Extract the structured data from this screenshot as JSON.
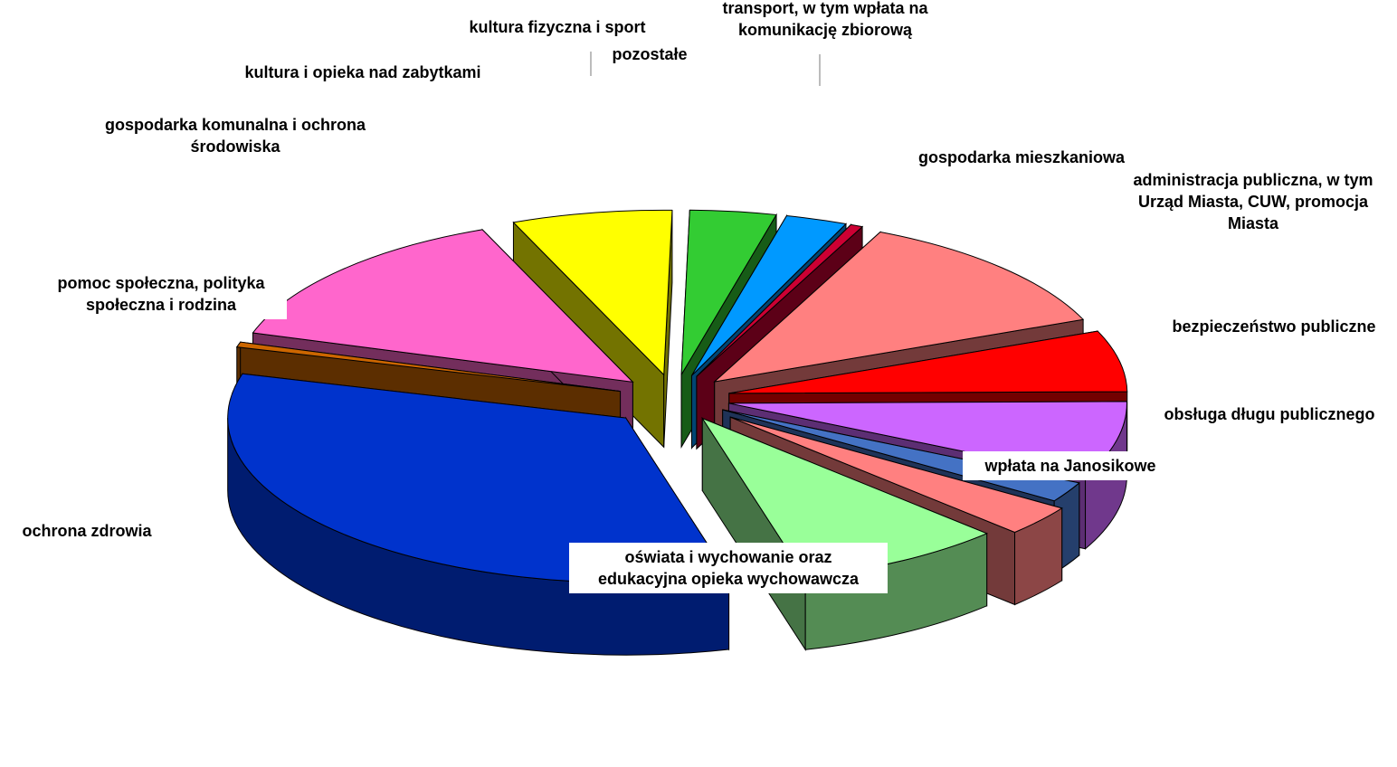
{
  "chart_data": {
    "type": "pie",
    "title": "",
    "slices": [
      {
        "label": "oświata i wychowanie oraz edukacyjna opieka wychowawcza",
        "label_lines": [
          "oświata i wychowanie oraz",
          "edukacyjna opieka wychowawcza"
        ],
        "value": 33.5,
        "color": "#0033CC"
      },
      {
        "label": "ochrona zdrowia",
        "label_lines": [
          "ochrona zdrowia"
        ],
        "value": 0.5,
        "color": "#CC6600"
      },
      {
        "label": "pomoc społeczna, polityka społeczna i rodzina",
        "label_lines": [
          "pomoc społeczna, polityka",
          "społeczna i rodzina"
        ],
        "value": 14.0,
        "color": "#FF66CC"
      },
      {
        "label": "gospodarka komunalna i ochrona środowiska",
        "label_lines": [
          "gospodarka komunalna i ochrona",
          "środowiska"
        ],
        "value": 6.5,
        "color": "#FFFF00"
      },
      {
        "label": "kultura i opieka nad zabytkami",
        "label_lines": [
          "kultura i opieka nad zabytkami"
        ],
        "value": 3.5,
        "color": "#33CC33"
      },
      {
        "label": "kultura fizyczna i sport",
        "label_lines": [
          "kultura fizyczna i sport"
        ],
        "value": 2.5,
        "color": "#0099FF"
      },
      {
        "label": "pozostałe",
        "label_lines": [
          "pozostałe"
        ],
        "value": 0.5,
        "color": "#CC0033"
      },
      {
        "label": "transport, w tym wpłata na komunikację zbiorową",
        "label_lines": [
          "transport, w tym wpłata na",
          "komunikację zbiorową"
        ],
        "value": 12.0,
        "color": "#FF8080"
      },
      {
        "label": "gospodarka mieszkaniowa",
        "label_lines": [
          "gospodarka mieszkaniowa"
        ],
        "value": 6.0,
        "color": "#FF0000"
      },
      {
        "label": "administracja publiczna, w tym Urząd Miasta, CUW, promocja Miasta",
        "label_lines": [
          "administracja publiczna, w tym",
          "Urząd Miasta, CUW, promocja",
          "Miasta"
        ],
        "value": 7.5,
        "color": "#CC66FF"
      },
      {
        "label": "bezpieczeństwo publiczne",
        "label_lines": [
          "bezpieczeństwo publiczne"
        ],
        "value": 2.0,
        "color": "#4472C4"
      },
      {
        "label": "obsługa długu publicznego",
        "label_lines": [
          "obsługa długu publicznego"
        ],
        "value": 3.0,
        "color": "#FF8080"
      },
      {
        "label": "wpłata na Janosikowe",
        "label_lines": [
          "wpłata na Janosikowe"
        ],
        "value": 8.5,
        "color": "#99FF99"
      }
    ]
  }
}
